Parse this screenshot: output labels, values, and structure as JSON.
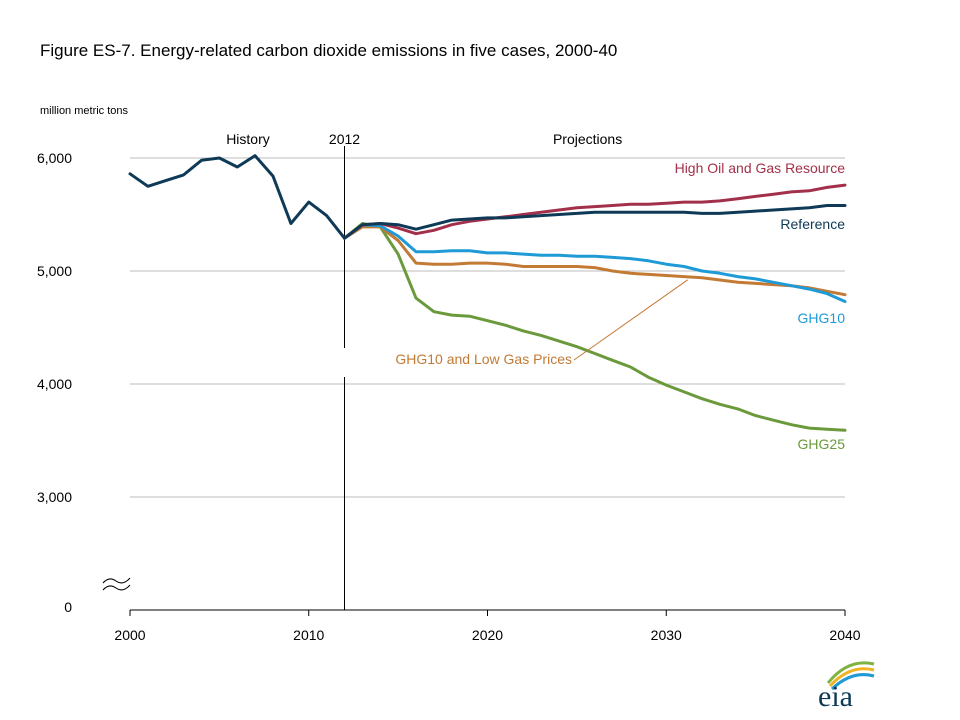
{
  "chart_data": {
    "type": "line",
    "title": "Figure ES-7. Energy-related carbon dioxide emissions in five cases, 2000-40",
    "ylabel": "million metric tons",
    "xlabel": "",
    "ylim": [
      0,
      6000
    ],
    "xlim": [
      2000,
      2040
    ],
    "axis_break": true,
    "yticks": [
      {
        "value": 0,
        "label": "0"
      },
      {
        "value": 3000,
        "label": "3,000"
      },
      {
        "value": 4000,
        "label": "4,000"
      },
      {
        "value": 5000,
        "label": "5,000"
      },
      {
        "value": 6000,
        "label": "6,000"
      }
    ],
    "xticks": [
      {
        "value": 2000,
        "label": "2000"
      },
      {
        "value": 2010,
        "label": "2010"
      },
      {
        "value": 2020,
        "label": "2020"
      },
      {
        "value": 2030,
        "label": "2030"
      },
      {
        "value": 2040,
        "label": "2040"
      }
    ],
    "annotations": {
      "history_label": "History",
      "divider_year_label": "2012",
      "projections_label": "Projections",
      "divider_year": 2012
    },
    "series": [
      {
        "name": "Reference",
        "color": "#0e3a57",
        "x": [
          2000,
          2001,
          2002,
          2003,
          2004,
          2005,
          2006,
          2007,
          2008,
          2009,
          2010,
          2011,
          2012,
          2013,
          2014,
          2015,
          2016,
          2017,
          2018,
          2019,
          2020,
          2021,
          2022,
          2023,
          2024,
          2025,
          2026,
          2027,
          2028,
          2029,
          2030,
          2031,
          2032,
          2033,
          2034,
          2035,
          2036,
          2037,
          2038,
          2039,
          2040
        ],
        "values": [
          5860,
          5750,
          5800,
          5850,
          5980,
          6000,
          5920,
          6020,
          5840,
          5420,
          5610,
          5490,
          5290,
          5410,
          5420,
          5410,
          5370,
          5410,
          5450,
          5460,
          5470,
          5470,
          5480,
          5490,
          5500,
          5510,
          5520,
          5520,
          5520,
          5520,
          5520,
          5520,
          5510,
          5510,
          5520,
          5530,
          5540,
          5550,
          5560,
          5580,
          5580
        ]
      },
      {
        "name": "High Oil and Gas Resource",
        "color": "#a3304a",
        "x": [
          2012,
          2013,
          2014,
          2015,
          2016,
          2017,
          2018,
          2019,
          2020,
          2021,
          2022,
          2023,
          2024,
          2025,
          2026,
          2027,
          2028,
          2029,
          2030,
          2031,
          2032,
          2033,
          2034,
          2035,
          2036,
          2037,
          2038,
          2039,
          2040
        ],
        "values": [
          5290,
          5410,
          5420,
          5380,
          5330,
          5360,
          5410,
          5440,
          5460,
          5480,
          5500,
          5520,
          5540,
          5560,
          5570,
          5580,
          5590,
          5590,
          5600,
          5610,
          5610,
          5620,
          5640,
          5660,
          5680,
          5700,
          5710,
          5740,
          5760
        ]
      },
      {
        "name": "GHG10",
        "color": "#1e9ad6",
        "x": [
          2012,
          2013,
          2014,
          2015,
          2016,
          2017,
          2018,
          2019,
          2020,
          2021,
          2022,
          2023,
          2024,
          2025,
          2026,
          2027,
          2028,
          2029,
          2030,
          2031,
          2032,
          2033,
          2034,
          2035,
          2036,
          2037,
          2038,
          2039,
          2040
        ],
        "values": [
          5290,
          5410,
          5400,
          5310,
          5170,
          5170,
          5180,
          5180,
          5160,
          5160,
          5150,
          5140,
          5140,
          5130,
          5130,
          5120,
          5110,
          5090,
          5060,
          5040,
          5000,
          4980,
          4950,
          4930,
          4900,
          4870,
          4840,
          4800,
          4730
        ]
      },
      {
        "name": "GHG10 and Low Gas Prices",
        "color": "#c27a35",
        "x": [
          2012,
          2013,
          2014,
          2015,
          2016,
          2017,
          2018,
          2019,
          2020,
          2021,
          2022,
          2023,
          2024,
          2025,
          2026,
          2027,
          2028,
          2029,
          2030,
          2031,
          2032,
          2033,
          2034,
          2035,
          2036,
          2037,
          2038,
          2039,
          2040
        ],
        "values": [
          5290,
          5390,
          5390,
          5270,
          5070,
          5060,
          5060,
          5070,
          5070,
          5060,
          5040,
          5040,
          5040,
          5040,
          5030,
          5000,
          4980,
          4970,
          4960,
          4950,
          4940,
          4920,
          4900,
          4890,
          4880,
          4870,
          4850,
          4820,
          4790
        ]
      },
      {
        "name": "GHG25",
        "color": "#6b9a3c",
        "x": [
          2012,
          2013,
          2014,
          2015,
          2016,
          2017,
          2018,
          2019,
          2020,
          2021,
          2022,
          2023,
          2024,
          2025,
          2026,
          2027,
          2028,
          2029,
          2030,
          2031,
          2032,
          2033,
          2034,
          2035,
          2036,
          2037,
          2038,
          2039,
          2040
        ],
        "values": [
          5290,
          5420,
          5390,
          5150,
          4760,
          4640,
          4610,
          4600,
          4560,
          4520,
          4470,
          4430,
          4380,
          4330,
          4270,
          4210,
          4150,
          4060,
          3990,
          3930,
          3870,
          3820,
          3780,
          3720,
          3680,
          3640,
          3610,
          3600,
          3590
        ]
      }
    ]
  },
  "logo": {
    "text": "eia"
  }
}
